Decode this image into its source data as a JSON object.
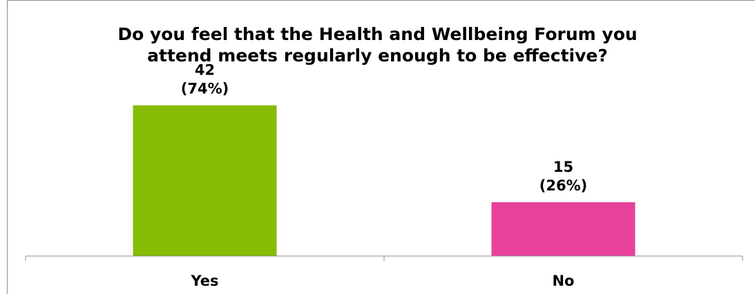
{
  "chart_data": {
    "type": "bar",
    "title_lines": [
      "Do you feel that the Health and Wellbeing Forum you",
      "attend meets regularly enough to be effective?"
    ],
    "categories": [
      "Yes",
      "No"
    ],
    "values": [
      42,
      15
    ],
    "percent_labels": [
      "(74%)",
      "(26%)"
    ],
    "colors": [
      "#86bc03",
      "#e8419a"
    ],
    "ylim": [
      0,
      50
    ],
    "grid": false,
    "legend": "none"
  }
}
